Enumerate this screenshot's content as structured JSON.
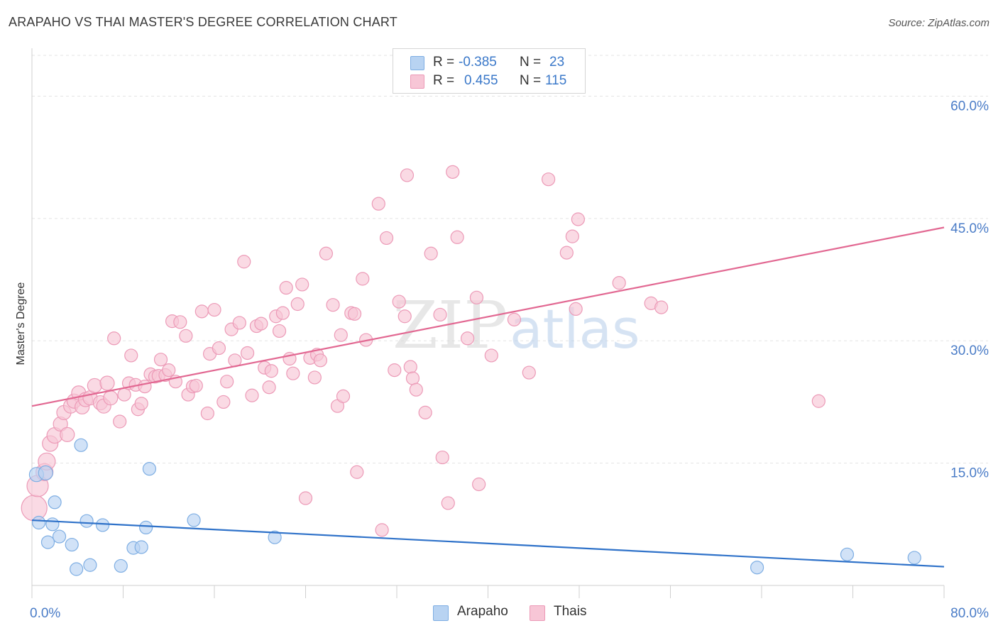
{
  "title": "ARAPAHO VS THAI MASTER'S DEGREE CORRELATION CHART",
  "source": "Source: ZipAtlas.com",
  "watermark": {
    "zip": "ZIP",
    "atlas": "atlas"
  },
  "legend_top": {
    "rows": [
      {
        "r_label": "R =",
        "r_value": "-0.385",
        "n_label": "N =",
        "n_value": "23"
      },
      {
        "r_label": "R =",
        "r_value": "0.455",
        "n_label": "N =",
        "n_value": "115"
      }
    ]
  },
  "colors": {
    "arapaho_fill": "#b8d3f2",
    "arapaho_stroke": "#7eaee3",
    "arapaho_line": "#2f72c9",
    "thais_fill": "#f7c6d6",
    "thais_stroke": "#ec9ab7",
    "thais_line": "#e26892",
    "grid": "#e3e3e3",
    "tick_text": "#4a7cc7"
  },
  "chart_data": {
    "type": "scatter",
    "title": "ARAPAHO VS THAI MASTER'S DEGREE CORRELATION CHART",
    "xlabel": "",
    "ylabel": "Master's Degree",
    "xlim": [
      0,
      80
    ],
    "ylim": [
      0,
      65
    ],
    "x_tick_labels": [
      "0.0%",
      "80.0%"
    ],
    "y_ticks": [
      15,
      30,
      45,
      60
    ],
    "y_tick_labels": [
      "15.0%",
      "30.0%",
      "45.0%",
      "60.0%"
    ],
    "legend": [
      "Arapaho",
      "Thais"
    ],
    "series": [
      {
        "name": "Arapaho",
        "r": -0.385,
        "n": 23,
        "trend": {
          "x": [
            0,
            80
          ],
          "y": [
            8.0,
            2.3
          ]
        },
        "points": [
          [
            0.4,
            13.6
          ],
          [
            1.2,
            13.8
          ],
          [
            0.6,
            7.7
          ],
          [
            1.4,
            5.3
          ],
          [
            1.8,
            7.5
          ],
          [
            2.0,
            10.2
          ],
          [
            2.4,
            6.0
          ],
          [
            3.5,
            5.0
          ],
          [
            3.9,
            2.0
          ],
          [
            4.3,
            17.2
          ],
          [
            4.8,
            7.9
          ],
          [
            5.1,
            2.5
          ],
          [
            6.2,
            7.4
          ],
          [
            7.8,
            2.4
          ],
          [
            8.9,
            4.6
          ],
          [
            9.6,
            4.7
          ],
          [
            10.0,
            7.1
          ],
          [
            10.3,
            14.3
          ],
          [
            14.2,
            8.0
          ],
          [
            21.3,
            5.9
          ],
          [
            63.6,
            2.2
          ],
          [
            71.5,
            3.8
          ],
          [
            77.4,
            3.4
          ]
        ],
        "sizes": [
          10,
          10,
          9,
          9,
          9,
          9,
          9,
          9,
          9,
          9,
          9,
          9,
          9,
          9,
          9,
          9,
          9,
          9,
          9,
          9,
          9,
          9,
          9
        ]
      },
      {
        "name": "Thais",
        "r": 0.455,
        "n": 115,
        "trend": {
          "x": [
            0,
            80
          ],
          "y": [
            22.0,
            43.9
          ]
        },
        "points": [
          [
            0.2,
            9.5
          ],
          [
            0.5,
            12.2
          ],
          [
            1.1,
            13.9
          ],
          [
            1.3,
            15.2
          ],
          [
            1.6,
            17.4
          ],
          [
            2.0,
            18.4
          ],
          [
            2.5,
            19.8
          ],
          [
            2.8,
            21.2
          ],
          [
            3.1,
            18.5
          ],
          [
            3.4,
            22.0
          ],
          [
            3.7,
            22.6
          ],
          [
            4.1,
            23.6
          ],
          [
            4.4,
            21.9
          ],
          [
            4.7,
            22.8
          ],
          [
            5.1,
            23.0
          ],
          [
            5.5,
            24.5
          ],
          [
            6.0,
            22.4
          ],
          [
            6.3,
            22.0
          ],
          [
            6.6,
            24.8
          ],
          [
            6.9,
            23.0
          ],
          [
            7.2,
            30.3
          ],
          [
            7.7,
            20.1
          ],
          [
            8.1,
            23.4
          ],
          [
            8.5,
            24.8
          ],
          [
            8.7,
            28.2
          ],
          [
            9.1,
            24.6
          ],
          [
            9.3,
            21.6
          ],
          [
            9.6,
            22.3
          ],
          [
            9.9,
            24.4
          ],
          [
            10.4,
            25.9
          ],
          [
            10.8,
            25.6
          ],
          [
            11.1,
            25.7
          ],
          [
            11.3,
            27.7
          ],
          [
            11.7,
            25.8
          ],
          [
            12.0,
            26.4
          ],
          [
            12.3,
            32.4
          ],
          [
            12.6,
            25.0
          ],
          [
            13.0,
            32.3
          ],
          [
            13.5,
            30.6
          ],
          [
            13.7,
            23.4
          ],
          [
            14.1,
            24.4
          ],
          [
            14.4,
            24.5
          ],
          [
            14.9,
            33.6
          ],
          [
            15.4,
            21.1
          ],
          [
            15.6,
            28.4
          ],
          [
            16.0,
            33.8
          ],
          [
            16.4,
            29.1
          ],
          [
            16.8,
            22.5
          ],
          [
            17.1,
            25.0
          ],
          [
            17.5,
            31.4
          ],
          [
            17.8,
            27.6
          ],
          [
            18.2,
            32.2
          ],
          [
            18.6,
            39.7
          ],
          [
            18.9,
            28.5
          ],
          [
            19.3,
            23.3
          ],
          [
            19.7,
            31.8
          ],
          [
            20.1,
            32.1
          ],
          [
            20.4,
            26.7
          ],
          [
            20.8,
            24.3
          ],
          [
            21.0,
            26.3
          ],
          [
            21.4,
            33.0
          ],
          [
            21.7,
            31.2
          ],
          [
            22.0,
            33.4
          ],
          [
            22.3,
            36.5
          ],
          [
            22.6,
            27.8
          ],
          [
            22.9,
            26.0
          ],
          [
            23.3,
            34.5
          ],
          [
            23.7,
            36.9
          ],
          [
            24.0,
            10.7
          ],
          [
            24.4,
            27.9
          ],
          [
            24.8,
            25.5
          ],
          [
            25.0,
            28.3
          ],
          [
            25.3,
            27.6
          ],
          [
            25.8,
            40.7
          ],
          [
            26.4,
            34.4
          ],
          [
            26.8,
            22.0
          ],
          [
            27.1,
            30.7
          ],
          [
            27.3,
            23.2
          ],
          [
            28.0,
            33.4
          ],
          [
            28.3,
            33.3
          ],
          [
            28.5,
            13.9
          ],
          [
            29.0,
            37.6
          ],
          [
            29.3,
            30.1
          ],
          [
            30.4,
            46.8
          ],
          [
            30.7,
            6.8
          ],
          [
            31.1,
            42.6
          ],
          [
            31.8,
            26.4
          ],
          [
            32.2,
            34.8
          ],
          [
            32.7,
            33.0
          ],
          [
            32.9,
            50.3
          ],
          [
            33.2,
            26.8
          ],
          [
            33.4,
            25.4
          ],
          [
            33.7,
            24.0
          ],
          [
            34.5,
            21.2
          ],
          [
            35.0,
            40.7
          ],
          [
            35.8,
            33.2
          ],
          [
            36.0,
            15.7
          ],
          [
            36.5,
            10.1
          ],
          [
            36.9,
            50.7
          ],
          [
            37.3,
            42.7
          ],
          [
            38.2,
            30.3
          ],
          [
            39.0,
            35.3
          ],
          [
            39.2,
            12.4
          ],
          [
            40.3,
            28.2
          ],
          [
            42.3,
            32.6
          ],
          [
            43.6,
            26.1
          ],
          [
            46.9,
            40.8
          ],
          [
            47.4,
            42.8
          ],
          [
            47.7,
            33.9
          ],
          [
            47.9,
            44.9
          ],
          [
            51.5,
            37.1
          ],
          [
            54.3,
            34.6
          ],
          [
            55.2,
            34.1
          ],
          [
            69.0,
            22.6
          ],
          [
            45.3,
            49.8
          ]
        ],
        "sizes": [
          18,
          15,
          12,
          12,
          11,
          11,
          10,
          10,
          10,
          10,
          10,
          10,
          10,
          10,
          10,
          10,
          10,
          10,
          10,
          10,
          9,
          9,
          9,
          9,
          9,
          9,
          9,
          9,
          9,
          9,
          9,
          9,
          9,
          9,
          9,
          9,
          9,
          9,
          9,
          9,
          9,
          9,
          9,
          9,
          9,
          9,
          9,
          9,
          9,
          9,
          9,
          9,
          9,
          9,
          9,
          9,
          9,
          9,
          9,
          9,
          9,
          9,
          9,
          9,
          9,
          9,
          9,
          9,
          9,
          9,
          9,
          9,
          9,
          9,
          9,
          9,
          9,
          9,
          9,
          9,
          9,
          9,
          9,
          9,
          9,
          9,
          9,
          9,
          9,
          9,
          9,
          9,
          9,
          9,
          9,
          9,
          9,
          9,
          9,
          9,
          9,
          9,
          9,
          9,
          9,
          9,
          9,
          9,
          9,
          9,
          9,
          9,
          9,
          9,
          9
        ]
      }
    ]
  }
}
